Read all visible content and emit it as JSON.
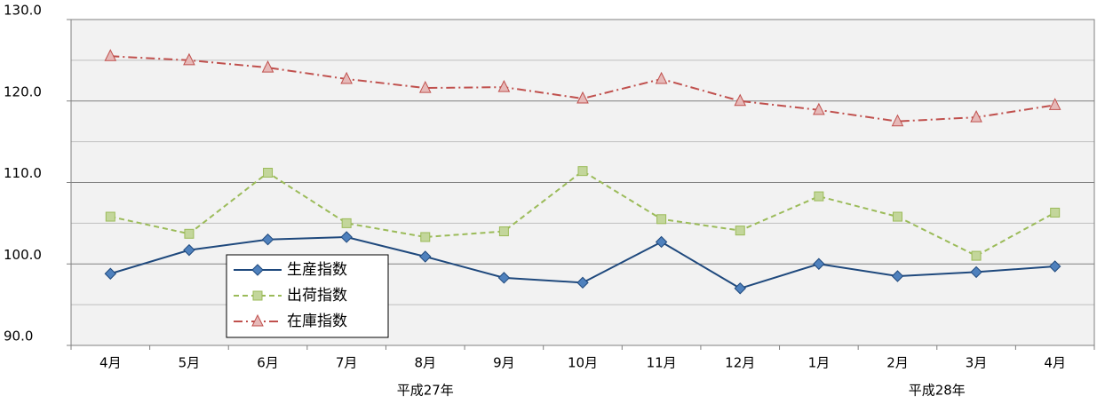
{
  "chart_data": {
    "type": "line",
    "categories": [
      "4月",
      "5月",
      "6月",
      "7月",
      "8月",
      "9月",
      "10月",
      "11月",
      "12月",
      "1月",
      "2月",
      "3月",
      "4月"
    ],
    "groups": [
      {
        "label": "平成27年",
        "start": 0,
        "end": 8
      },
      {
        "label": "平成28年",
        "start": 9,
        "end": 12
      }
    ],
    "series": [
      {
        "name": "生産指数",
        "color": "#1f497d",
        "marker_fill": "#4f81bd",
        "marker": "diamond",
        "dash": "solid",
        "values": [
          98.8,
          101.7,
          103.0,
          103.3,
          100.9,
          98.3,
          97.7,
          102.7,
          97.0,
          100.0,
          98.5,
          99.0,
          99.7
        ]
      },
      {
        "name": "出荷指数",
        "color": "#9bbb59",
        "marker_fill": "#c3d69b",
        "marker": "square",
        "dash": "dash",
        "values": [
          105.8,
          103.7,
          111.2,
          105.0,
          103.3,
          104.0,
          111.4,
          105.5,
          104.1,
          108.3,
          105.8,
          101.0,
          106.3
        ]
      },
      {
        "name": "在庫指数",
        "color": "#c0504d",
        "marker_fill": "#e6b9b8",
        "marker": "triangle",
        "dash": "dashdot",
        "values": [
          125.5,
          125.0,
          124.1,
          122.7,
          121.6,
          121.7,
          120.3,
          122.7,
          120.0,
          118.9,
          117.5,
          118.0,
          119.5
        ]
      }
    ],
    "ylim": [
      90,
      130
    ],
    "yticks": [
      {
        "value": 90,
        "label": "90.0"
      },
      {
        "value": 100,
        "label": "100.0"
      },
      {
        "value": 110,
        "label": "110.0"
      },
      {
        "value": 120,
        "label": "120.0"
      },
      {
        "value": 130,
        "label": "130.0"
      }
    ],
    "minor_gridlines": [
      95,
      105,
      115,
      125
    ],
    "grid": true,
    "legend": "lower-left"
  }
}
